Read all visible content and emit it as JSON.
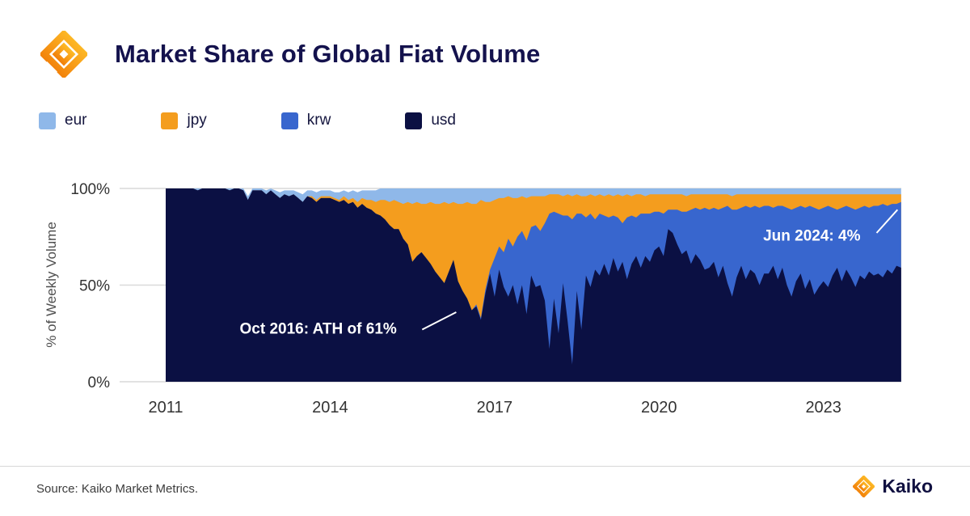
{
  "header": {
    "title": "Market Share of Global Fiat Volume"
  },
  "legend": [
    {
      "label": "eur",
      "color": "#8FB8E9"
    },
    {
      "label": "jpy",
      "color": "#F49D1E"
    },
    {
      "label": "krw",
      "color": "#3866CE"
    },
    {
      "label": "usd",
      "color": "#0B1043"
    }
  ],
  "chart_data": {
    "type": "area",
    "stacked": true,
    "percent": true,
    "title": "Market Share of Global Fiat Volume",
    "xlabel": "",
    "ylabel": "% of Weekly Volume",
    "xlim": [
      2011,
      2024.42
    ],
    "ylim": [
      0,
      100
    ],
    "x_start": 2011.0,
    "x_step": 0.0833333,
    "x_ticks": [
      2011,
      2014,
      2017,
      2020,
      2023
    ],
    "x_tick_labels": [
      "2011",
      "2014",
      "2017",
      "2020",
      "2023"
    ],
    "y_ticks": [
      0,
      50,
      100
    ],
    "y_tick_labels": [
      "0%",
      "50%",
      "100%"
    ],
    "grid": "horizontal",
    "legend_position": "top",
    "series": [
      {
        "name": "usd",
        "color": "#0B1043",
        "values": [
          100,
          100,
          100,
          100,
          100,
          100,
          100,
          99,
          100,
          100,
          100,
          100,
          100,
          100,
          99,
          100,
          100,
          99,
          94,
          99,
          99,
          99,
          97,
          99,
          97,
          95,
          97,
          96,
          97,
          95,
          93,
          96,
          95,
          93,
          95,
          95,
          95,
          94,
          93,
          94,
          92,
          93,
          90,
          92,
          90,
          89,
          87,
          86,
          84,
          81,
          79,
          79,
          74,
          71,
          62,
          65,
          67,
          64,
          61,
          57,
          54,
          51,
          57,
          63,
          52,
          47,
          43,
          37,
          39,
          32,
          46,
          56,
          44,
          58,
          49,
          44,
          50,
          40,
          50,
          35,
          55,
          49,
          50,
          42,
          17,
          43,
          25,
          51,
          31,
          9,
          47,
          27,
          55,
          49,
          58,
          55,
          61,
          55,
          64,
          57,
          62,
          53,
          61,
          65,
          59,
          65,
          62,
          68,
          70,
          65,
          79,
          77,
          71,
          66,
          68,
          61,
          66,
          63,
          58,
          59,
          62,
          54,
          60,
          51,
          44,
          54,
          60,
          53,
          58,
          56,
          50,
          56,
          56,
          60,
          53,
          59,
          50,
          44,
          52,
          56,
          48,
          53,
          45,
          49,
          52,
          49,
          55,
          59,
          52,
          58,
          54,
          49,
          55,
          53,
          57,
          55,
          56,
          54,
          58,
          56,
          60,
          59
        ]
      },
      {
        "name": "krw",
        "color": "#3866CE",
        "values": [
          0,
          0,
          0,
          0,
          0,
          0,
          0,
          0,
          0,
          0,
          0,
          0,
          0,
          0,
          0,
          0,
          0,
          0,
          0,
          0,
          0,
          0,
          0,
          0,
          0,
          0,
          0,
          0,
          0,
          0,
          0,
          0,
          0,
          0,
          0,
          0,
          0,
          0,
          0,
          0,
          0,
          0,
          0,
          0,
          0,
          0,
          0,
          0,
          0,
          0,
          0,
          0,
          0,
          0,
          0,
          0,
          0,
          0,
          0,
          0,
          0,
          0,
          0,
          0,
          0,
          0,
          0,
          0,
          1,
          1,
          2,
          2,
          20,
          12,
          18,
          30,
          20,
          35,
          28,
          38,
          25,
          32,
          28,
          40,
          70,
          45,
          62,
          35,
          55,
          75,
          40,
          60,
          30,
          38,
          26,
          32,
          25,
          30,
          22,
          28,
          20,
          32,
          25,
          20,
          28,
          22,
          25,
          20,
          18,
          22,
          10,
          12,
          18,
          22,
          20,
          28,
          24,
          26,
          32,
          30,
          28,
          35,
          30,
          40,
          45,
          35,
          30,
          38,
          32,
          35,
          40,
          35,
          35,
          30,
          38,
          32,
          40,
          45,
          38,
          35,
          42,
          38,
          45,
          40,
          38,
          42,
          35,
          30,
          38,
          33,
          36,
          40,
          35,
          38,
          33,
          36,
          35,
          38,
          33,
          36,
          32,
          34
        ]
      },
      {
        "name": "jpy",
        "color": "#F49D1E",
        "values": [
          0,
          0,
          0,
          0,
          0,
          0,
          0,
          0,
          0,
          0,
          0,
          0,
          0,
          0,
          0,
          0,
          0,
          0,
          0,
          0,
          0,
          0,
          0,
          0,
          0,
          0,
          0,
          0,
          0,
          0,
          0,
          0,
          1,
          1,
          1,
          1,
          1,
          1,
          1,
          2,
          2,
          2,
          3,
          3,
          4,
          5,
          6,
          8,
          10,
          12,
          15,
          14,
          18,
          22,
          30,
          28,
          25,
          28,
          32,
          35,
          38,
          42,
          35,
          30,
          40,
          45,
          50,
          55,
          52,
          61,
          45,
          35,
          30,
          25,
          28,
          22,
          25,
          20,
          18,
          22,
          16,
          15,
          18,
          14,
          10,
          9,
          10,
          10,
          11,
          12,
          10,
          9,
          11,
          10,
          12,
          10,
          10,
          12,
          10,
          12,
          14,
          12,
          10,
          12,
          10,
          9,
          10,
          9,
          9,
          10,
          8,
          8,
          8,
          9,
          8,
          8,
          7,
          8,
          7,
          8,
          7,
          8,
          7,
          6,
          7,
          8,
          7,
          6,
          7,
          6,
          7,
          6,
          6,
          7,
          6,
          6,
          7,
          8,
          7,
          6,
          7,
          6,
          7,
          8,
          7,
          6,
          7,
          8,
          7,
          6,
          7,
          8,
          7,
          6,
          7,
          6,
          6,
          5,
          6,
          5,
          5,
          4
        ]
      },
      {
        "name": "eur",
        "color": "#8FB8E9",
        "values": [
          0,
          0,
          0,
          0,
          0,
          0,
          0,
          1,
          0,
          0,
          0,
          0,
          0,
          0,
          1,
          0,
          0,
          1,
          2,
          1,
          1,
          1,
          2,
          1,
          2,
          3,
          2,
          3,
          2,
          3,
          4,
          3,
          3,
          4,
          3,
          3,
          3,
          3,
          4,
          3,
          4,
          4,
          5,
          4,
          5,
          5,
          6,
          6,
          6,
          7,
          6,
          7,
          8,
          7,
          8,
          7,
          8,
          8,
          7,
          8,
          8,
          7,
          8,
          7,
          8,
          8,
          7,
          8,
          8,
          6,
          7,
          7,
          6,
          5,
          5,
          4,
          5,
          5,
          4,
          5,
          4,
          4,
          4,
          4,
          3,
          3,
          3,
          4,
          3,
          4,
          3,
          4,
          4,
          3,
          4,
          3,
          4,
          3,
          4,
          3,
          4,
          3,
          4,
          3,
          3,
          4,
          3,
          3,
          3,
          3,
          3,
          3,
          3,
          3,
          4,
          3,
          3,
          3,
          3,
          3,
          3,
          3,
          3,
          3,
          4,
          3,
          3,
          3,
          3,
          3,
          3,
          3,
          3,
          3,
          3,
          3,
          3,
          3,
          3,
          3,
          3,
          3,
          3,
          3,
          3,
          3,
          3,
          3,
          3,
          3,
          3,
          3,
          3,
          3,
          3,
          3,
          3,
          3,
          3,
          3,
          3,
          3
        ]
      }
    ],
    "annotations": [
      {
        "text": "Oct 2016: ATH of 61%",
        "x": 2012.35,
        "y": 25,
        "pointer": [
          [
            2015.68,
            27
          ],
          [
            2016.3,
            36
          ]
        ]
      },
      {
        "text": "Jun 2024: 4%",
        "x": 2021.9,
        "y": 73,
        "pointer": [
          [
            2023.97,
            77
          ],
          [
            2024.35,
            89
          ]
        ]
      }
    ]
  },
  "footer": {
    "source": "Source: Kaiko Market Metrics.",
    "brand": "Kaiko"
  }
}
